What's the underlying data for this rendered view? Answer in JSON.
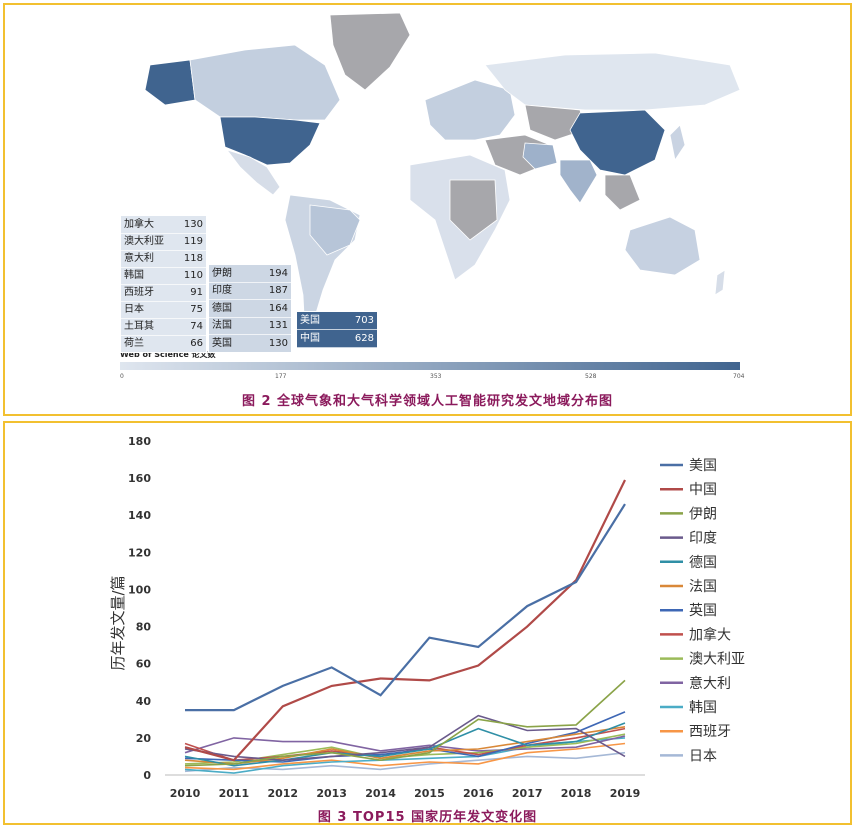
{
  "figure2": {
    "caption": "图 2 全球气象和大气科学领域人工智能研究发文地域分布图",
    "legend_title": "Web of Science 论文数",
    "legend_ticks": [
      "0",
      "177",
      "353",
      "528",
      "704"
    ],
    "colors": {
      "low": "#dfe6ef",
      "high": "#40648f",
      "none": "#a7a7ab"
    },
    "table_left": [
      {
        "name": "加拿大",
        "value": "130"
      },
      {
        "name": "澳大利亚",
        "value": "119"
      },
      {
        "name": "意大利",
        "value": "118"
      },
      {
        "name": "韩国",
        "value": "110"
      },
      {
        "name": "西班牙",
        "value": "91"
      },
      {
        "name": "日本",
        "value": "75"
      },
      {
        "name": "土耳其",
        "value": "74"
      },
      {
        "name": "荷兰",
        "value": "66"
      }
    ],
    "table_mid": [
      {
        "name": "伊朗",
        "value": "194"
      },
      {
        "name": "印度",
        "value": "187"
      },
      {
        "name": "德国",
        "value": "164"
      },
      {
        "name": "法国",
        "value": "131"
      },
      {
        "name": "英国",
        "value": "130"
      }
    ],
    "table_right": [
      {
        "name": "美国",
        "value": "703"
      },
      {
        "name": "中国",
        "value": "628"
      }
    ]
  },
  "figure3": {
    "caption": "图 3 TOP15 国家历年发文变化图"
  },
  "chart_data": {
    "type": "line",
    "title": "",
    "xlabel": "",
    "ylabel": "历年发文量/篇",
    "x": [
      2010,
      2011,
      2012,
      2013,
      2014,
      2015,
      2016,
      2017,
      2018,
      2019
    ],
    "ylim": [
      0,
      180
    ],
    "yticks": [
      0,
      20,
      40,
      60,
      80,
      100,
      120,
      140,
      160,
      180
    ],
    "legend_position": "right",
    "series": [
      {
        "name": "美国",
        "color": "#4a6fa5",
        "values": [
          35,
          35,
          48,
          58,
          43,
          74,
          69,
          91,
          104,
          146
        ]
      },
      {
        "name": "中国",
        "color": "#b04a48",
        "values": [
          15,
          8,
          37,
          48,
          52,
          51,
          59,
          80,
          105,
          159
        ]
      },
      {
        "name": "伊朗",
        "color": "#8aa348",
        "values": [
          5,
          6,
          10,
          12,
          8,
          12,
          30,
          26,
          27,
          51
        ]
      },
      {
        "name": "印度",
        "color": "#6a5a8c",
        "values": [
          14,
          10,
          8,
          10,
          12,
          15,
          32,
          24,
          25,
          10
        ]
      },
      {
        "name": "德国",
        "color": "#2f8fa6",
        "values": [
          10,
          5,
          8,
          12,
          10,
          14,
          25,
          16,
          18,
          28
        ]
      },
      {
        "name": "法国",
        "color": "#d98838",
        "values": [
          8,
          6,
          9,
          14,
          9,
          13,
          14,
          18,
          22,
          26
        ]
      },
      {
        "name": "英国",
        "color": "#3e67b5",
        "values": [
          9,
          8,
          7,
          10,
          11,
          14,
          10,
          17,
          23,
          34
        ]
      },
      {
        "name": "加拿大",
        "color": "#c0504d",
        "values": [
          17,
          8,
          10,
          13,
          10,
          15,
          11,
          16,
          20,
          25
        ]
      },
      {
        "name": "澳大利亚",
        "color": "#9bbb59",
        "values": [
          6,
          7,
          11,
          15,
          9,
          11,
          12,
          15,
          17,
          22
        ]
      },
      {
        "name": "意大利",
        "color": "#8064a2",
        "values": [
          12,
          20,
          18,
          18,
          13,
          16,
          13,
          14,
          15,
          21
        ]
      },
      {
        "name": "韩国",
        "color": "#4bacc6",
        "values": [
          3,
          1,
          5,
          7,
          8,
          9,
          10,
          15,
          18,
          20
        ]
      },
      {
        "name": "西班牙",
        "color": "#f79646",
        "values": [
          4,
          3,
          6,
          8,
          5,
          7,
          6,
          12,
          14,
          17
        ]
      },
      {
        "name": "日本",
        "color": "#a5b8d6",
        "values": [
          2,
          4,
          3,
          5,
          3,
          6,
          8,
          10,
          9,
          12
        ]
      }
    ]
  }
}
